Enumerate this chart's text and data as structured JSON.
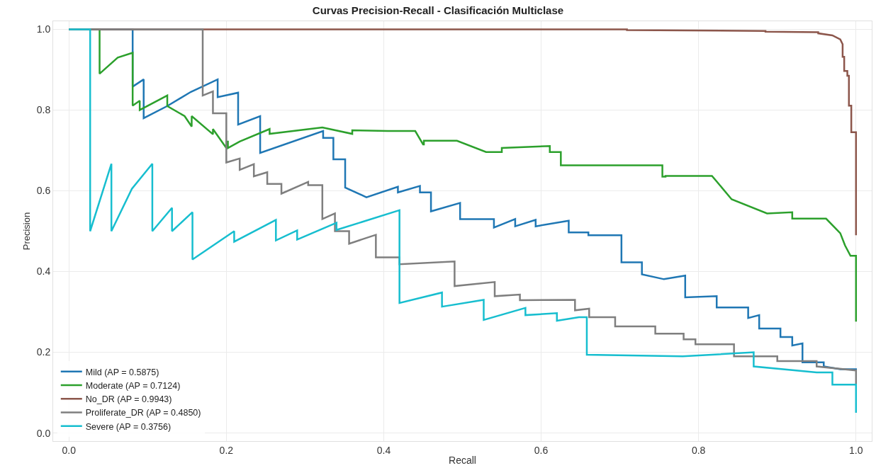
{
  "chart_data": {
    "type": "line",
    "title": "Curvas Precision-Recall - Clasificación Multiclase",
    "xlabel": "Recall",
    "ylabel": "Precision",
    "xlim": [
      -0.02,
      1.02
    ],
    "ylim": [
      -0.02,
      1.02
    ],
    "xticks": [
      {
        "value": 0,
        "label": "0.0"
      },
      0.2,
      0.4,
      0.6,
      0.8,
      {
        "value": 1,
        "label": "1.0"
      }
    ],
    "yticks": [
      {
        "value": 0,
        "label": "0.0"
      },
      0.2,
      0.4,
      0.6,
      0.8,
      {
        "value": 1,
        "label": "1.0"
      }
    ],
    "grid": true,
    "legend": "bottom left",
    "marker": "none",
    "line_style": "solid",
    "series": [
      {
        "name": "Mild (AP = 0.5875)",
        "color": "#1f77b4",
        "x": [
          0,
          0.081,
          0.081,
          0.095,
          0.095,
          0.125,
          0.155,
          0.189,
          0.189,
          0.215,
          0.215,
          0.243,
          0.243,
          0.323,
          0.323,
          0.336,
          0.336,
          0.351,
          0.351,
          0.378,
          0.378,
          0.418,
          0.418,
          0.446,
          0.446,
          0.46,
          0.46,
          0.497,
          0.497,
          0.54,
          0.54,
          0.567,
          0.567,
          0.593,
          0.593,
          0.635,
          0.635,
          0.66,
          0.66,
          0.702,
          0.702,
          0.728,
          0.728,
          0.756,
          0.756,
          0.783,
          0.783,
          0.823,
          0.823,
          0.863,
          0.863,
          0.877,
          0.877,
          0.904,
          0.904,
          0.919,
          0.919,
          0.932,
          0.932,
          0.959,
          0.959,
          0.98,
          0.98,
          1.0,
          1.0
        ],
        "values": [
          1,
          1,
          0.858,
          0.876,
          0.78,
          0.81,
          0.845,
          0.876,
          0.832,
          0.843,
          0.764,
          0.785,
          0.694,
          0.748,
          0.731,
          0.731,
          0.678,
          0.678,
          0.608,
          0.584,
          0.584,
          0.61,
          0.596,
          0.612,
          0.596,
          0.596,
          0.549,
          0.57,
          0.53,
          0.53,
          0.509,
          0.53,
          0.512,
          0.528,
          0.512,
          0.526,
          0.497,
          0.497,
          0.49,
          0.49,
          0.423,
          0.423,
          0.393,
          0.381,
          0.381,
          0.39,
          0.336,
          0.339,
          0.311,
          0.311,
          0.285,
          0.292,
          0.259,
          0.259,
          0.238,
          0.238,
          0.217,
          0.222,
          0.175,
          0.175,
          0.165,
          0.158,
          0.158,
          0.158,
          0.155
        ]
      },
      {
        "name": "Moderate (AP = 0.7124)",
        "color": "#2ca02c",
        "x": [
          0,
          0.039,
          0.039,
          0.062,
          0.081,
          0.081,
          0.09,
          0.09,
          0.125,
          0.125,
          0.147,
          0.156,
          0.156,
          0.183,
          0.183,
          0.2,
          0.2,
          0.202,
          0.202,
          0.217,
          0.255,
          0.255,
          0.322,
          0.36,
          0.36,
          0.405,
          0.44,
          0.45,
          0.451,
          0.451,
          0.493,
          0.53,
          0.55,
          0.55,
          0.611,
          0.611,
          0.625,
          0.625,
          0.664,
          0.734,
          0.754,
          0.754,
          0.758,
          0.758,
          0.817,
          0.842,
          0.842,
          0.887,
          0.919,
          0.919,
          0.962,
          0.98,
          0.98,
          0.986,
          0.986,
          0.993,
          0.993,
          0.995,
          0.995,
          1.0,
          1.0
        ],
        "values": [
          1,
          1,
          0.89,
          0.93,
          0.942,
          0.811,
          0.823,
          0.8,
          0.836,
          0.81,
          0.785,
          0.759,
          0.785,
          0.74,
          0.753,
          0.706,
          0.722,
          0.722,
          0.706,
          0.722,
          0.753,
          0.741,
          0.757,
          0.741,
          0.75,
          0.748,
          0.748,
          0.715,
          0.715,
          0.724,
          0.724,
          0.696,
          0.696,
          0.706,
          0.711,
          0.696,
          0.696,
          0.663,
          0.663,
          0.663,
          0.663,
          0.635,
          0.635,
          0.637,
          0.637,
          0.579,
          0.579,
          0.544,
          0.547,
          0.531,
          0.531,
          0.495,
          0.495,
          0.465,
          0.465,
          0.439,
          0.439,
          0.439,
          0.439,
          0.439,
          0.276
        ]
      },
      {
        "name": "No_DR (AP = 0.9943)",
        "color": "#8c564b",
        "x": [
          0,
          0.709,
          0.709,
          0.885,
          0.885,
          0.952,
          0.952,
          0.97,
          0.98,
          0.983,
          0.983,
          0.985,
          0.985,
          0.989,
          0.989,
          0.991,
          0.991,
          0.994,
          0.994,
          1.0,
          1.0
        ],
        "values": [
          1,
          1,
          0.998,
          0.996,
          0.994,
          0.993,
          0.99,
          0.985,
          0.975,
          0.963,
          0.932,
          0.932,
          0.897,
          0.897,
          0.885,
          0.885,
          0.811,
          0.811,
          0.745,
          0.745,
          0.49
        ]
      },
      {
        "name": "Proliferate_DR (AP = 0.4850)",
        "color": "#7f7f7f",
        "x": [
          0,
          0.17,
          0.17,
          0.183,
          0.183,
          0.2,
          0.2,
          0.217,
          0.217,
          0.235,
          0.235,
          0.252,
          0.252,
          0.27,
          0.27,
          0.304,
          0.304,
          0.322,
          0.322,
          0.338,
          0.338,
          0.356,
          0.356,
          0.39,
          0.39,
          0.42,
          0.42,
          0.49,
          0.49,
          0.541,
          0.541,
          0.573,
          0.573,
          0.643,
          0.643,
          0.661,
          0.661,
          0.694,
          0.694,
          0.745,
          0.745,
          0.781,
          0.781,
          0.796,
          0.796,
          0.845,
          0.845,
          0.9,
          0.9,
          0.95,
          0.95,
          1.0,
          1.0
        ],
        "values": [
          1,
          1,
          0.836,
          0.846,
          0.792,
          0.792,
          0.67,
          0.68,
          0.652,
          0.666,
          0.636,
          0.646,
          0.617,
          0.617,
          0.593,
          0.622,
          0.614,
          0.614,
          0.53,
          0.544,
          0.5,
          0.5,
          0.469,
          0.491,
          0.435,
          0.435,
          0.418,
          0.425,
          0.364,
          0.374,
          0.339,
          0.343,
          0.329,
          0.33,
          0.304,
          0.308,
          0.287,
          0.287,
          0.264,
          0.264,
          0.246,
          0.246,
          0.232,
          0.232,
          0.22,
          0.22,
          0.19,
          0.19,
          0.178,
          0.178,
          0.165,
          0.155,
          0.12
        ]
      },
      {
        "name": "Severe (AP = 0.3756)",
        "color": "#17becf",
        "x": [
          0,
          0.027,
          0.027,
          0.054,
          0.054,
          0.08,
          0.106,
          0.106,
          0.131,
          0.131,
          0.157,
          0.157,
          0.21,
          0.21,
          0.263,
          0.263,
          0.29,
          0.29,
          0.34,
          0.34,
          0.42,
          0.42,
          0.474,
          0.474,
          0.527,
          0.527,
          0.58,
          0.58,
          0.62,
          0.62,
          0.648,
          0.648,
          0.658,
          0.658,
          0.78,
          0.87,
          0.87,
          0.95,
          0.97,
          0.97,
          1.0,
          1.0
        ],
        "values": [
          1,
          1,
          0.5,
          0.667,
          0.5,
          0.605,
          0.667,
          0.5,
          0.558,
          0.5,
          0.547,
          0.43,
          0.5,
          0.474,
          0.528,
          0.477,
          0.502,
          0.479,
          0.521,
          0.503,
          0.552,
          0.322,
          0.348,
          0.313,
          0.33,
          0.28,
          0.31,
          0.292,
          0.297,
          0.278,
          0.287,
          0.287,
          0.287,
          0.194,
          0.19,
          0.2,
          0.165,
          0.15,
          0.15,
          0.12,
          0.12,
          0.05
        ]
      }
    ]
  }
}
